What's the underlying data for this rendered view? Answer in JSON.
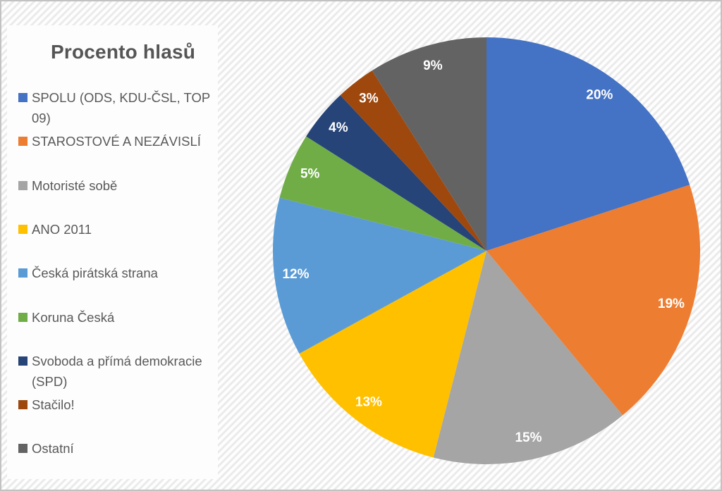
{
  "chart": {
    "title": "Procento hlasů"
  },
  "chart_data": {
    "type": "pie",
    "title": "Procento hlasů",
    "categories": [
      "SPOLU (ODS, KDU-ČSL, TOP 09)",
      "STAROSTOVÉ A NEZÁVISLÍ",
      "Motoristé sobě",
      "ANO 2011",
      "Česká pirátská strana",
      "Koruna Česká",
      "Svoboda a přímá demokracie (SPD)",
      "Stačilo!",
      "Ostatní"
    ],
    "values": [
      20,
      19,
      15,
      13,
      12,
      5,
      4,
      3,
      9
    ],
    "data_labels": [
      "20%",
      "19%",
      "15%",
      "13%",
      "12%",
      "5%",
      "4%",
      "3%",
      "9%"
    ],
    "colors": [
      "#4472C4",
      "#ED7D31",
      "#A5A5A5",
      "#FFC000",
      "#5B9BD5",
      "#70AD47",
      "#264478",
      "#9E480E",
      "#636363"
    ],
    "data_label_color": "#ffffff",
    "legend_text_color": "#595959",
    "title_color": "#555555",
    "legend_position": "left",
    "start_angle_deg": 0,
    "direction": "clockwise",
    "units": "%"
  }
}
